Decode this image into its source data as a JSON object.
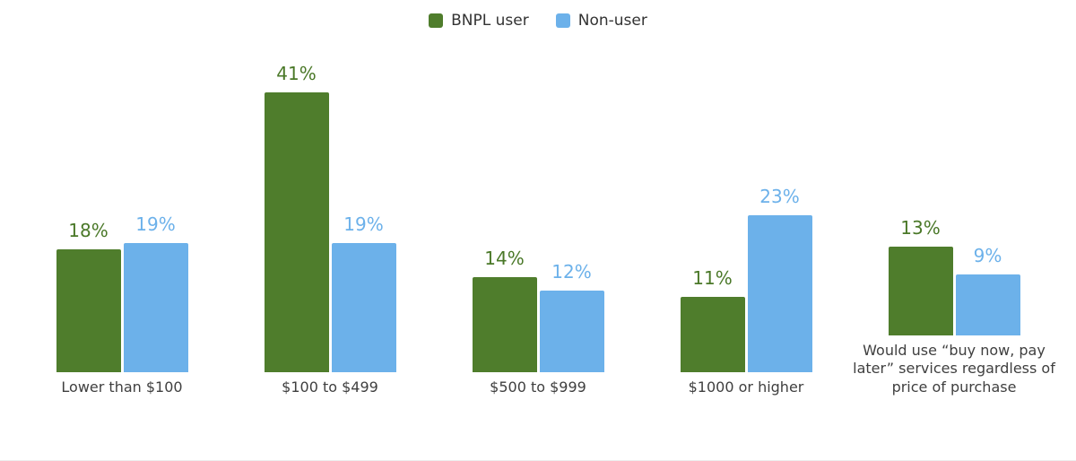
{
  "page": {
    "background": "#ffffff",
    "bottom_border_color": "#ececec"
  },
  "legend": {
    "position": "top-center",
    "items": [
      {
        "label": "BNPL user",
        "color": "#4f7d2c"
      },
      {
        "label": "Non-user",
        "color": "#6cb1ea"
      }
    ]
  },
  "chart_data": {
    "type": "bar",
    "title": "",
    "xlabel": "",
    "ylabel": "",
    "categories": [
      "Lower than $100",
      "$100 to $499",
      "$500 to $999",
      "$1000 or higher",
      "Would use “buy now, pay later” services regardless of price of purchase"
    ],
    "series": [
      {
        "name": "BNPL user",
        "color": "#4f7d2c",
        "label_color": "#4a7828",
        "values": [
          18,
          41,
          14,
          11,
          13
        ],
        "labels": [
          "18%",
          "41%",
          "14%",
          "11%",
          "13%"
        ]
      },
      {
        "name": "Non-user",
        "color": "#6cb1ea",
        "label_color": "#6cb1ea",
        "values": [
          19,
          19,
          12,
          23,
          9
        ],
        "labels": [
          "19%",
          "19%",
          "12%",
          "23%",
          "9%"
        ]
      }
    ],
    "ylim": [
      0,
      50
    ],
    "value_suffix": "%",
    "grid": false,
    "axis_lines": false,
    "legend_position": "top-center"
  }
}
